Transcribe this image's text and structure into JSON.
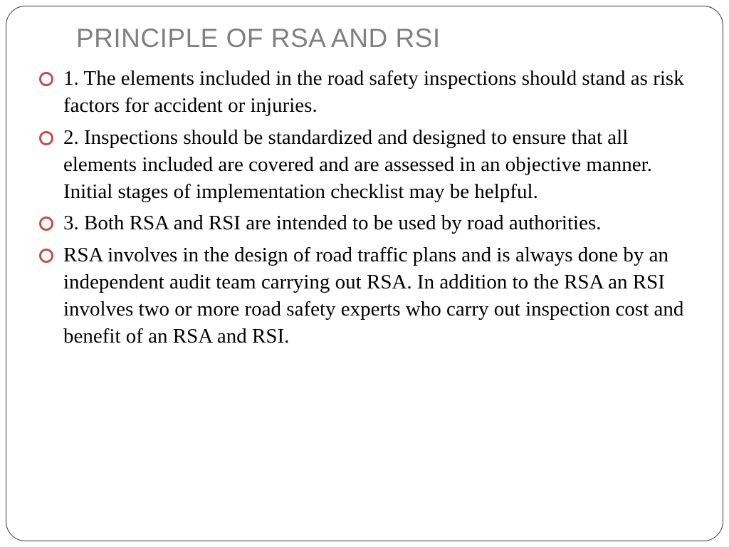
{
  "title": "PRINCIPLE OF RSA AND RSI",
  "bullets": [
    "1. The elements included in the road safety inspections should stand as risk factors for accident or injuries.",
    "2. Inspections should be standardized and designed to ensure that all elements included are covered and are assessed in an objective manner. Initial stages of implementation checklist may be helpful.",
    "3. Both RSA and RSI are intended to be used by road authorities.",
    " RSA involves in the design of road traffic plans and is always done by an independent audit team carrying out RSA. In addition to the RSA an RSI involves two or more road safety experts who carry out inspection cost and benefit of an RSA and RSI."
  ],
  "colors": {
    "title_color": "#808080",
    "bullet_ring": "#c0504d",
    "frame_border": "#333333",
    "text_color": "#000000",
    "background": "#ffffff"
  },
  "typography": {
    "title_font": "Arial",
    "title_size_pt": 28,
    "body_font": "Garamond",
    "body_size_pt": 22
  }
}
